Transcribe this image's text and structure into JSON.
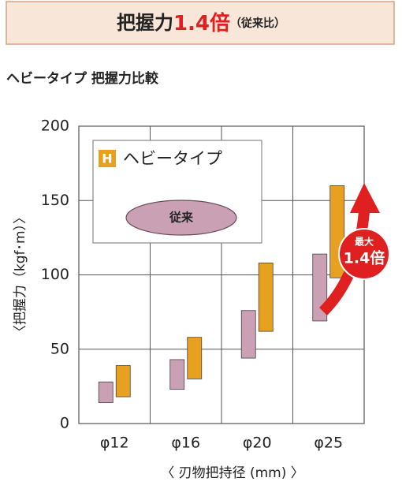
{
  "chart_data": {
    "type": "range-bar",
    "title_parts": [
      "把握力",
      "1.4倍",
      "（従来比）"
    ],
    "subtitle": "ヘビータイプ 把握力比較",
    "y_label": "〈把握力（kgf･m）〉",
    "x_label": "〈 刃物把持径 (mm) 〉",
    "categories": [
      "φ12",
      "φ16",
      "φ20",
      "φ25"
    ],
    "series": [
      {
        "name": "従来",
        "color": "#c9a0b4",
        "low": [
          14,
          23,
          44,
          69
        ],
        "high": [
          28,
          43,
          76,
          114
        ]
      },
      {
        "name": "ヘビータイプ",
        "badge": "H",
        "color": "#e8a020",
        "low": [
          18,
          30,
          62,
          98
        ],
        "high": [
          39,
          58,
          108,
          160
        ]
      }
    ],
    "ylim": [
      0,
      200
    ],
    "yticks": [
      0,
      50,
      100,
      150,
      200
    ],
    "grid": true,
    "annotation": [
      "最大",
      "1.4倍"
    ]
  }
}
